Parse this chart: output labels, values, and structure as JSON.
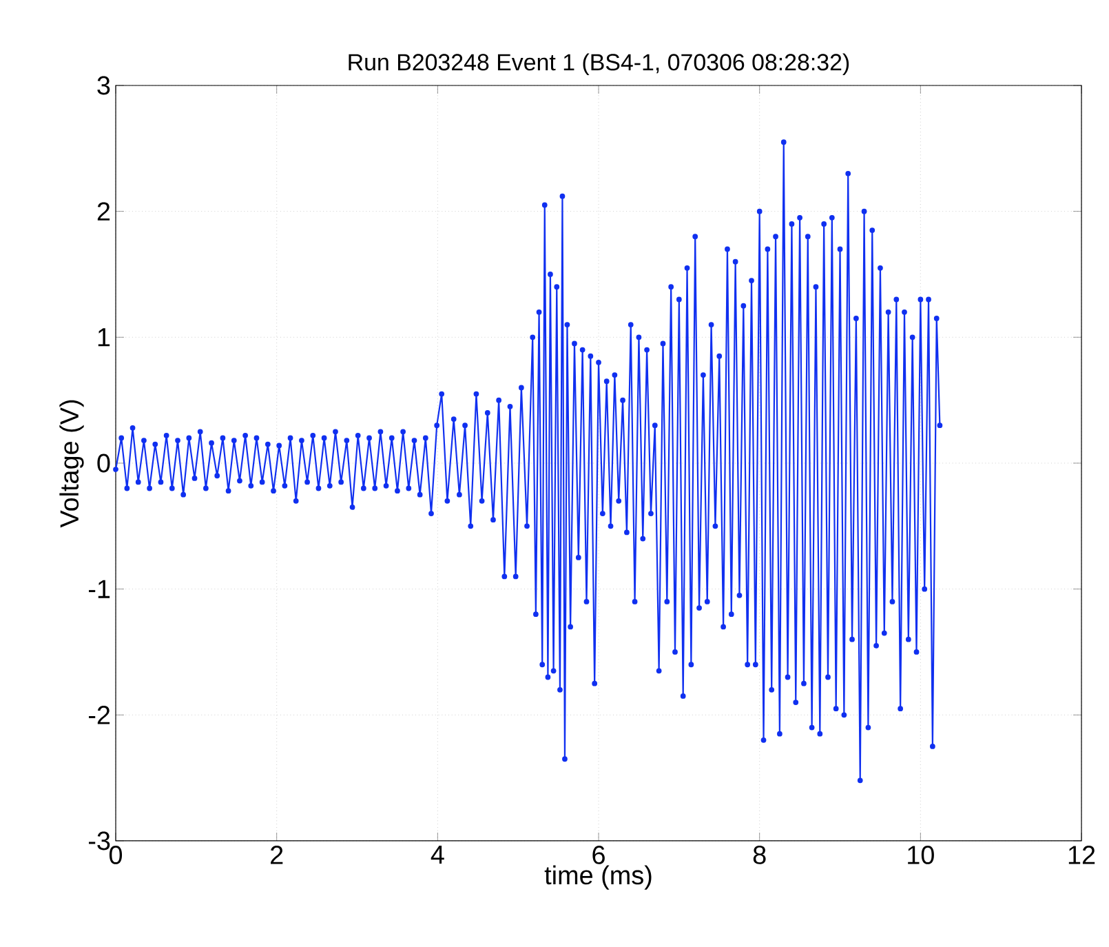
{
  "chart_data": {
    "type": "line",
    "title": "Run B203248 Event 1 (BS4-1, 070306 08:28:32)",
    "xlabel": "time (ms)",
    "ylabel": "Voltage (V)",
    "xlim": [
      0,
      12
    ],
    "ylim": [
      -3,
      3
    ],
    "xticks": [
      0,
      2,
      4,
      6,
      8,
      10,
      12
    ],
    "yticks": [
      -3,
      -2,
      -1,
      0,
      1,
      2,
      3
    ],
    "grid": true,
    "marker": "circle",
    "line_style": "solid",
    "series": [
      {
        "color": "#1030f0",
        "x": [
          0,
          0.07,
          0.14,
          0.21,
          0.28,
          0.35,
          0.42,
          0.49,
          0.56,
          0.63,
          0.7,
          0.77,
          0.84,
          0.91,
          0.98,
          1.05,
          1.12,
          1.19,
          1.26,
          1.33,
          1.4,
          1.47,
          1.54,
          1.61,
          1.68,
          1.75,
          1.82,
          1.89,
          1.96,
          2.03,
          2.1,
          2.17,
          2.24,
          2.31,
          2.38,
          2.45,
          2.52,
          2.59,
          2.66,
          2.73,
          2.8,
          2.87,
          2.94,
          3.01,
          3.08,
          3.15,
          3.22,
          3.29,
          3.36,
          3.43,
          3.5,
          3.57,
          3.64,
          3.71,
          3.78,
          3.85,
          3.92,
          3.99,
          4.05,
          4.12,
          4.2,
          4.27,
          4.34,
          4.41,
          4.48,
          4.55,
          4.62,
          4.69,
          4.76,
          4.83,
          4.9,
          4.97,
          5.04,
          5.11,
          5.18,
          5.22,
          5.26,
          5.3,
          5.33,
          5.37,
          5.4,
          5.44,
          5.48,
          5.52,
          5.55,
          5.58,
          5.61,
          5.65,
          5.7,
          5.75,
          5.8,
          5.85,
          5.9,
          5.95,
          6.0,
          6.05,
          6.1,
          6.15,
          6.2,
          6.25,
          6.3,
          6.35,
          6.4,
          6.45,
          6.5,
          6.55,
          6.6,
          6.65,
          6.7,
          6.75,
          6.8,
          6.85,
          6.9,
          6.95,
          7.0,
          7.05,
          7.1,
          7.15,
          7.2,
          7.25,
          7.3,
          7.35,
          7.4,
          7.45,
          7.5,
          7.55,
          7.6,
          7.65,
          7.7,
          7.75,
          7.8,
          7.85,
          7.9,
          7.95,
          8.0,
          8.05,
          8.1,
          8.15,
          8.2,
          8.25,
          8.3,
          8.35,
          8.4,
          8.45,
          8.5,
          8.55,
          8.6,
          8.65,
          8.7,
          8.75,
          8.8,
          8.85,
          8.9,
          8.95,
          9.0,
          9.05,
          9.1,
          9.15,
          9.2,
          9.25,
          9.3,
          9.35,
          9.4,
          9.45,
          9.5,
          9.55,
          9.6,
          9.65,
          9.7,
          9.75,
          9.8,
          9.85,
          9.9,
          9.95,
          10.0,
          10.05,
          10.1,
          10.15,
          10.2,
          10.24
        ],
        "values": [
          -0.05,
          0.2,
          -0.2,
          0.28,
          -0.15,
          0.18,
          -0.2,
          0.15,
          -0.15,
          0.22,
          -0.2,
          0.18,
          -0.25,
          0.2,
          -0.12,
          0.25,
          -0.2,
          0.16,
          -0.1,
          0.2,
          -0.22,
          0.18,
          -0.14,
          0.22,
          -0.18,
          0.2,
          -0.15,
          0.15,
          -0.22,
          0.14,
          -0.18,
          0.2,
          -0.3,
          0.18,
          -0.15,
          0.22,
          -0.2,
          0.2,
          -0.18,
          0.25,
          -0.15,
          0.18,
          -0.35,
          0.22,
          -0.2,
          0.2,
          -0.2,
          0.25,
          -0.18,
          0.2,
          -0.22,
          0.25,
          -0.2,
          0.18,
          -0.25,
          0.2,
          -0.4,
          0.3,
          0.55,
          -0.3,
          0.35,
          -0.25,
          0.3,
          -0.5,
          0.55,
          -0.3,
          0.4,
          -0.45,
          0.5,
          -0.9,
          0.45,
          -0.9,
          0.6,
          -0.5,
          1.0,
          -1.2,
          1.2,
          -1.6,
          2.05,
          -1.7,
          1.5,
          -1.65,
          1.4,
          -1.8,
          2.12,
          -2.35,
          1.1,
          -1.3,
          0.95,
          -0.75,
          0.9,
          -1.1,
          0.85,
          -1.75,
          0.8,
          -0.4,
          0.65,
          -0.5,
          0.7,
          -0.3,
          0.5,
          -0.55,
          1.1,
          -1.1,
          1.0,
          -0.6,
          0.9,
          -0.4,
          0.3,
          -1.65,
          0.95,
          -1.1,
          1.4,
          -1.5,
          1.3,
          -1.85,
          1.55,
          -1.6,
          1.8,
          -1.15,
          0.7,
          -1.1,
          1.1,
          -0.5,
          0.85,
          -1.3,
          1.7,
          -1.2,
          1.6,
          -1.05,
          1.25,
          -1.6,
          1.45,
          -1.6,
          2.0,
          -2.2,
          1.7,
          -1.8,
          1.8,
          -2.15,
          2.55,
          -1.7,
          1.9,
          -1.9,
          1.95,
          -1.75,
          1.8,
          -2.1,
          1.4,
          -2.15,
          1.9,
          -1.7,
          1.95,
          -1.95,
          1.7,
          -2.0,
          2.3,
          -1.4,
          1.15,
          -2.52,
          2.0,
          -2.1,
          1.85,
          -1.45,
          1.55,
          -1.35,
          1.2,
          -1.1,
          1.3,
          -1.95,
          1.2,
          -1.4,
          1.0,
          -1.5,
          1.3,
          -1.0,
          1.3,
          -2.25,
          1.15,
          0.3
        ]
      }
    ]
  }
}
